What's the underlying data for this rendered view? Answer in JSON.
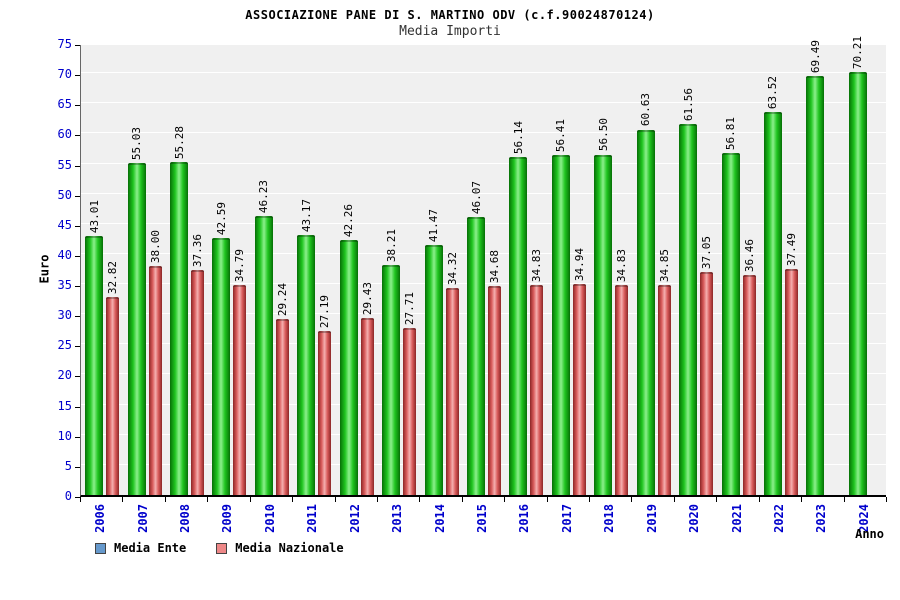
{
  "header": {
    "title": "ASSOCIAZIONE PANE DI S. MARTINO ODV (c.f.90024870124)",
    "subtitle": "Media Importi"
  },
  "chart_data": {
    "type": "bar",
    "title": "Media Importi",
    "xlabel": "Anno",
    "ylabel": "Euro",
    "ylim": [
      0,
      75
    ],
    "yticks": [
      0,
      5,
      10,
      15,
      20,
      25,
      30,
      35,
      40,
      45,
      50,
      55,
      60,
      65,
      70,
      75
    ],
    "grid": "horizontal-white-on-gray",
    "legend_position": "bottom-left",
    "categories": [
      "2006",
      "2007",
      "2008",
      "2009",
      "2010",
      "2011",
      "2012",
      "2013",
      "2014",
      "2015",
      "2016",
      "2017",
      "2018",
      "2019",
      "2020",
      "2021",
      "2022",
      "2023",
      "2024"
    ],
    "series": [
      {
        "name": "Media Ente",
        "bar_color": "#1ec41e",
        "values": [
          43.01,
          55.03,
          55.28,
          42.59,
          46.23,
          43.17,
          42.26,
          38.21,
          41.47,
          46.07,
          56.14,
          56.41,
          56.5,
          60.63,
          61.56,
          56.81,
          63.52,
          69.49,
          70.21
        ]
      },
      {
        "name": "Media Nazionale",
        "bar_color": "#d95c5c",
        "values": [
          32.82,
          38.0,
          37.36,
          34.79,
          29.24,
          27.19,
          29.43,
          27.71,
          34.32,
          34.68,
          34.83,
          34.94,
          34.83,
          34.85,
          37.05,
          36.46,
          37.49,
          null,
          null
        ]
      }
    ],
    "legend": [
      {
        "label": "Media Ente",
        "swatch_color": "#6699cc"
      },
      {
        "label": "Media Nazionale",
        "swatch_color": "#ee8888"
      }
    ],
    "colors": {
      "plot_background": "#f0f0f0",
      "gridline": "#ffffff",
      "axis_text": "#0000cc",
      "value_label_text": "#000000"
    }
  }
}
